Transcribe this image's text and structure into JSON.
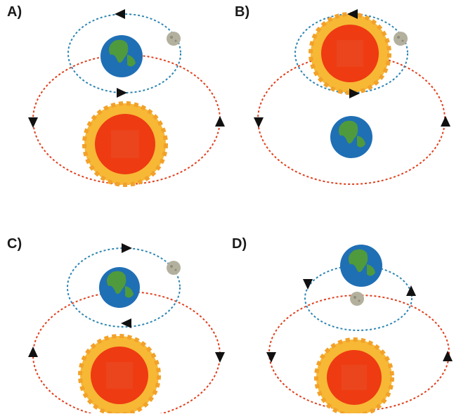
{
  "panels": [
    {
      "label": "A)"
    },
    {
      "label": "B)"
    },
    {
      "label": "C)"
    },
    {
      "label": "D)"
    }
  ],
  "colors": {
    "big_orbit": "#e0401e",
    "small_orbit": "#2e86b3",
    "arrow": "#111111",
    "sun_core": "#ee3b12",
    "sun_rays": "#f7b835",
    "earth_ocean": "#1f6fb5",
    "earth_land": "#4f9a3c",
    "moon": "#b3b09e"
  },
  "icons": [
    "sun-icon",
    "earth-icon",
    "moon-icon",
    "arrow-icon"
  ]
}
